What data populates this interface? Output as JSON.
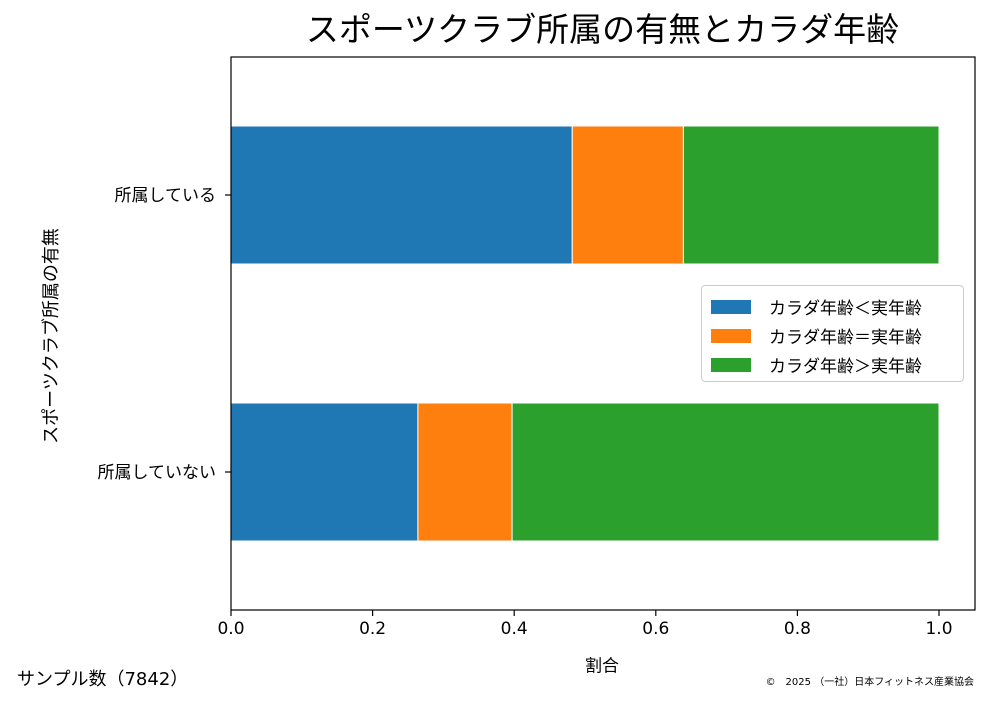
{
  "chart_data": {
    "type": "bar",
    "orientation": "horizontal",
    "stacked": true,
    "title": "スポーツクラブ所属の有無とカラダ年齢",
    "xlabel": "割合",
    "ylabel": "スポーツクラブ所属の有無",
    "categories": [
      "所属している",
      "所属していない"
    ],
    "series": [
      {
        "name": "カラダ年齢＜実年齢",
        "color": "#1f77b4",
        "values": [
          0.482,
          0.264
        ]
      },
      {
        "name": "カラダ年齢＝実年齢",
        "color": "#ff7f0e",
        "values": [
          0.157,
          0.133
        ]
      },
      {
        "name": "カラダ年齢＞実年齢",
        "color": "#2ca02c",
        "values": [
          0.361,
          0.603
        ]
      }
    ],
    "xlim": [
      0.0,
      1.05
    ],
    "xticks": [
      "0.0",
      "0.2",
      "0.4",
      "0.6",
      "0.8",
      "1.0"
    ],
    "grid": false,
    "legend_position": "center-right"
  },
  "footer": {
    "sample_note": "サンプル数（7842）",
    "copyright": "©　2025 （一社）日本フィットネス産業協会"
  }
}
